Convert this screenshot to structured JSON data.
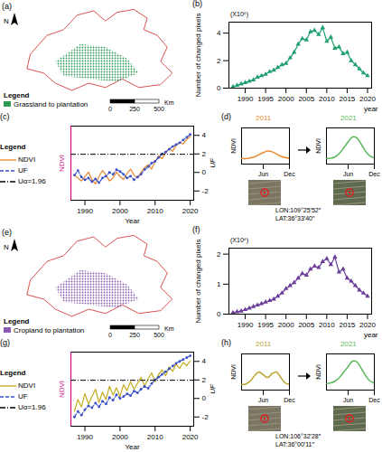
{
  "chart_data": [
    {
      "type": "map",
      "panel": "(a)",
      "north": "N",
      "legend": "bottom-left",
      "legend_title": "Legend",
      "series": [
        {
          "name": "Grassland to plantation",
          "color": "#2e9a56"
        }
      ],
      "scale_bar": {
        "ticks": [
          0,
          250,
          500
        ],
        "unit": "Km"
      }
    },
    {
      "type": "line",
      "panel": "(b)",
      "x_label": "year",
      "y_label": "Number of changed pixels",
      "y_unit": "(X10⁶)",
      "x": [
        1987,
        1988,
        1989,
        1990,
        1991,
        1992,
        1993,
        1994,
        1995,
        1996,
        1997,
        1998,
        1999,
        2000,
        2001,
        2002,
        2003,
        2004,
        2005,
        2006,
        2007,
        2008,
        2009,
        2010,
        2011,
        2012,
        2013,
        2014,
        2015,
        2016,
        2017,
        2018,
        2019,
        2020
      ],
      "values": [
        0.1,
        0.2,
        0.3,
        0.4,
        0.5,
        0.6,
        0.8,
        0.9,
        1.0,
        1.2,
        1.3,
        1.5,
        1.7,
        1.8,
        2.2,
        2.6,
        3.2,
        3.6,
        3.5,
        4.1,
        4.2,
        3.9,
        4.4,
        3.4,
        3.7,
        2.9,
        3.0,
        2.5,
        2.6,
        2.0,
        1.7,
        1.4,
        1.1,
        0.9
      ],
      "color": "#1f9e6e",
      "marker": "triangle",
      "xlim": [
        1986,
        2021
      ],
      "xticks": [
        1990,
        1995,
        2000,
        2005,
        2010,
        2015,
        2020
      ],
      "ylim": [
        0,
        4.8
      ],
      "yticks": [
        0,
        2,
        4
      ]
    },
    {
      "type": "line",
      "panel": "(c)",
      "legend": "left",
      "legend_title": "Legend",
      "x_label": "Year",
      "y_label": "NDVI",
      "y2_label": "UF",
      "x": [
        1987,
        1988,
        1989,
        1990,
        1991,
        1992,
        1993,
        1994,
        1995,
        1996,
        1997,
        1998,
        1999,
        2000,
        2001,
        2002,
        2003,
        2004,
        2005,
        2006,
        2007,
        2008,
        2009,
        2010,
        2011,
        2012,
        2013,
        2014,
        2015,
        2016,
        2017,
        2018,
        2019,
        2020
      ],
      "series": [
        {
          "name": "NDVI",
          "color": "#e8872b",
          "axis": "y",
          "line_style": "solid",
          "values": [
            0.37,
            0.35,
            0.33,
            0.36,
            0.39,
            0.34,
            0.31,
            0.36,
            0.4,
            0.37,
            0.33,
            0.35,
            0.39,
            0.36,
            0.34,
            0.38,
            0.41,
            0.37,
            0.35,
            0.39,
            0.42,
            0.44,
            0.41,
            0.46,
            0.5,
            0.48,
            0.52,
            0.55,
            0.53,
            0.57,
            0.59,
            0.58,
            0.61,
            0.63
          ]
        },
        {
          "name": "UF",
          "color": "#3a4fc4",
          "axis": "y2",
          "line_style": "dashed",
          "marker": "circle",
          "values": [
            -0.3,
            0.2,
            -0.5,
            -0.8,
            -0.6,
            -1.0,
            -0.7,
            -1.1,
            -0.6,
            -0.4,
            0.0,
            -0.2,
            0.3,
            0.1,
            -0.2,
            -0.6,
            -0.4,
            -0.8,
            -0.5,
            -0.2,
            0.3,
            0.6,
            1.0,
            1.2,
            1.6,
            2.0,
            2.2,
            2.5,
            2.8,
            3.0,
            3.2,
            3.5,
            3.8,
            4.1
          ]
        }
      ],
      "reference_lines": [
        {
          "name": "Uα=1.96",
          "value": 1.96,
          "axis": "y2",
          "color": "#000000",
          "line_style": "dashdot"
        }
      ],
      "xlim": [
        1986,
        2021
      ],
      "xticks": [
        1990,
        2000,
        2010,
        2020
      ],
      "ylim": [
        0.2,
        0.7
      ],
      "yticks": [],
      "y2lim": [
        -3,
        5
      ],
      "y2ticks": [
        -2,
        0,
        2,
        4
      ]
    },
    {
      "type": "line",
      "panel": "(d)",
      "y_label": "NDVI",
      "x": [
        1,
        2,
        3,
        4,
        5,
        6,
        7,
        8,
        9,
        10,
        11,
        12
      ],
      "xlim": [
        1,
        12
      ],
      "xticks": [
        {
          "value": 6,
          "label": "Jun"
        },
        {
          "value": 12,
          "label": "Dec"
        }
      ],
      "ylim": [
        0,
        1
      ],
      "yticks": [],
      "series": [
        {
          "name": "2011",
          "color": "#e8872b",
          "values": [
            0.15,
            0.15,
            0.17,
            0.2,
            0.26,
            0.32,
            0.36,
            0.34,
            0.28,
            0.22,
            0.18,
            0.16
          ]
        },
        {
          "name": "2021",
          "color": "#5cb85c",
          "values": [
            0.15,
            0.16,
            0.2,
            0.3,
            0.45,
            0.62,
            0.75,
            0.72,
            0.55,
            0.35,
            0.22,
            0.17
          ]
        }
      ],
      "location": [
        "LON:109°25′52″",
        "LAT:36°33′40″"
      ]
    },
    {
      "type": "map",
      "panel": "(e)",
      "north": "N",
      "legend": "bottom-left",
      "legend_title": "Legend",
      "series": [
        {
          "name": "Cropland to plantation",
          "color": "#8a5bb5"
        }
      ],
      "scale_bar": {
        "ticks": [
          0,
          250,
          500
        ],
        "unit": "Km"
      }
    },
    {
      "type": "line",
      "panel": "(f)",
      "x_label": "year",
      "y_label": "Number of changed pixels",
      "y_unit": "(X10⁶)",
      "x": [
        1987,
        1988,
        1989,
        1990,
        1991,
        1992,
        1993,
        1994,
        1995,
        1996,
        1997,
        1998,
        1999,
        2000,
        2001,
        2002,
        2003,
        2004,
        2005,
        2006,
        2007,
        2008,
        2009,
        2010,
        2011,
        2012,
        2013,
        2014,
        2015,
        2016,
        2017,
        2018,
        2019,
        2020
      ],
      "values": [
        0.05,
        0.08,
        0.1,
        0.15,
        0.2,
        0.25,
        0.3,
        0.35,
        0.4,
        0.45,
        0.5,
        0.6,
        0.7,
        0.85,
        0.95,
        1.05,
        1.2,
        1.35,
        1.3,
        1.5,
        1.6,
        1.55,
        1.75,
        1.85,
        1.65,
        1.9,
        1.4,
        1.5,
        1.2,
        1.1,
        0.95,
        0.8,
        0.7,
        0.6
      ],
      "color": "#6a3d9a",
      "marker": "triangle",
      "xlim": [
        1986,
        2021
      ],
      "xticks": [
        1990,
        1995,
        2000,
        2005,
        2010,
        2015,
        2020
      ],
      "ylim": [
        0,
        2.2
      ],
      "yticks": [
        0,
        1,
        2
      ]
    },
    {
      "type": "line",
      "panel": "(g)",
      "legend": "left",
      "legend_title": "Legend",
      "x_label": "Year",
      "y_label": "NDVI",
      "y2_label": "UF",
      "x": [
        1987,
        1988,
        1989,
        1990,
        1991,
        1992,
        1993,
        1994,
        1995,
        1996,
        1997,
        1998,
        1999,
        2000,
        2001,
        2002,
        2003,
        2004,
        2005,
        2006,
        2007,
        2008,
        2009,
        2010,
        2011,
        2012,
        2013,
        2014,
        2015,
        2016,
        2017,
        2018,
        2019,
        2020
      ],
      "series": [
        {
          "name": "NDVI",
          "color": "#c2ab1c",
          "axis": "y",
          "line_style": "solid",
          "values": [
            0.3,
            0.38,
            0.33,
            0.42,
            0.35,
            0.4,
            0.45,
            0.36,
            0.43,
            0.38,
            0.47,
            0.41,
            0.46,
            0.4,
            0.48,
            0.44,
            0.5,
            0.45,
            0.49,
            0.53,
            0.47,
            0.52,
            0.56,
            0.5,
            0.55,
            0.58,
            0.54,
            0.6,
            0.57,
            0.62,
            0.59,
            0.63,
            0.61,
            0.64
          ]
        },
        {
          "name": "UF",
          "color": "#3a4fc4",
          "axis": "y2",
          "line_style": "dashed",
          "marker": "circle",
          "values": [
            -2.0,
            -1.4,
            -1.8,
            -1.2,
            -0.8,
            -1.0,
            -0.5,
            -0.9,
            -0.3,
            -0.6,
            0.1,
            -0.2,
            0.4,
            0.0,
            0.2,
            0.5,
            0.3,
            0.8,
            0.6,
            1.0,
            1.3,
            1.1,
            1.6,
            2.0,
            2.3,
            2.6,
            2.9,
            3.2,
            3.5,
            3.8,
            4.0,
            4.2,
            4.4,
            4.6
          ]
        }
      ],
      "reference_lines": [
        {
          "name": "Uα=1.96",
          "value": 1.96,
          "axis": "y2",
          "color": "#000000",
          "line_style": "dashdot"
        }
      ],
      "xlim": [
        1986,
        2021
      ],
      "xticks": [
        1990,
        2000,
        2010,
        2020
      ],
      "ylim": [
        0.2,
        0.7
      ],
      "yticks": [],
      "y2lim": [
        -3,
        5
      ],
      "y2ticks": [
        -2,
        0,
        2,
        4
      ]
    },
    {
      "type": "line",
      "panel": "(h)",
      "y_label": "NDVI",
      "x": [
        1,
        2,
        3,
        4,
        5,
        6,
        7,
        8,
        9,
        10,
        11,
        12
      ],
      "xlim": [
        1,
        12
      ],
      "xticks": [
        {
          "value": 6,
          "label": "Jun"
        },
        {
          "value": 12,
          "label": "Dec"
        }
      ],
      "ylim": [
        0,
        1
      ],
      "yticks": [],
      "series": [
        {
          "name": "2011",
          "color": "#b5a32a",
          "values": [
            0.15,
            0.17,
            0.25,
            0.4,
            0.5,
            0.42,
            0.35,
            0.45,
            0.5,
            0.35,
            0.2,
            0.16
          ]
        },
        {
          "name": "2021",
          "color": "#5cb85c",
          "values": [
            0.18,
            0.2,
            0.25,
            0.35,
            0.5,
            0.65,
            0.8,
            0.78,
            0.6,
            0.4,
            0.25,
            0.2
          ]
        }
      ],
      "location": [
        "LON:106°32′28″",
        "LAT:36°00′11″"
      ]
    }
  ]
}
